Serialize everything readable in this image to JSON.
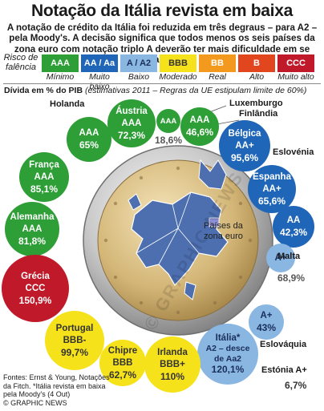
{
  "header": {
    "title": "Notação da Itália revista em baixa",
    "intro": "A notação de crédito da Itália foi reduzida em três degraus – para A2 – pela Moody's. A decisão significa que todos menos os seis países da zona euro com notação triplo A deverão ter mais dificuldade em se financiar"
  },
  "legend": {
    "label": "Risco de falência",
    "items": [
      {
        "rating": "AAA",
        "desc": "Mínimo",
        "color": "#2e9e36",
        "text": "#ffffff"
      },
      {
        "rating": "AA / Aa",
        "desc": "Muito baixo",
        "color": "#1f66b8",
        "text": "#ffffff"
      },
      {
        "rating": "A / A2",
        "desc": "Baixo",
        "color": "#8ab6e2",
        "text": "#1a2f5a"
      },
      {
        "rating": "BBB",
        "desc": "Moderado",
        "color": "#f6e21a",
        "text": "#333333"
      },
      {
        "rating": "BB",
        "desc": "Real",
        "color": "#f39a1e",
        "text": "#ffffff"
      },
      {
        "rating": "B",
        "desc": "Alto",
        "color": "#e2461e",
        "text": "#ffffff"
      },
      {
        "rating": "CCC",
        "desc": "Muito alto",
        "color": "#c01a2a",
        "text": "#ffffff"
      }
    ]
  },
  "debt": {
    "title": "Dívida em % do PIB",
    "note": "(estimativas 2011 – Regras da UE estipulam limite de 60%)"
  },
  "countries": {
    "holanda": {
      "name": "Holanda",
      "rating": "AAA",
      "pct": "65%"
    },
    "austria": {
      "name": "Áustria",
      "rating": "AAA",
      "pct": "72,3%"
    },
    "luxemburgo": {
      "name": "Luxemburgo",
      "rating": "AAA",
      "pct": "18,6%"
    },
    "finlandia": {
      "name": "Finlândia",
      "rating": "AAA",
      "pct": "46,6%"
    },
    "belgica": {
      "name": "Bélgica",
      "rating": "AA+",
      "pct": "95,6%"
    },
    "eslovenia": {
      "name": "Eslovénia",
      "rating": "AA",
      "pct": "42,3%"
    },
    "espanha": {
      "name": "Espanha",
      "rating": "AA+",
      "pct": "65,6%"
    },
    "franca": {
      "name": "França",
      "rating": "AAA",
      "pct": "85,1%"
    },
    "alemanha": {
      "name": "Alemanha",
      "rating": "AAA",
      "pct": "81,8%"
    },
    "malta": {
      "name": "Malta",
      "rating": "A+",
      "pct": "68,9%"
    },
    "grecia": {
      "name": "Grécia",
      "rating": "CCC",
      "pct": "150,9%"
    },
    "eslovaquia": {
      "name": "Eslováquia",
      "rating": "A+",
      "pct": "43%"
    },
    "portugal": {
      "name": "Portugal",
      "rating": "BBB-",
      "pct": "99,7%"
    },
    "italia": {
      "name": "Itália*",
      "rating": "A2 – desce de Aa2",
      "pct": "120,1%"
    },
    "chipre": {
      "name": "Chipre",
      "rating": "BBB",
      "pct": "62,7%"
    },
    "irlanda": {
      "name": "Irlanda",
      "rating": "BBB+",
      "pct": "110%"
    },
    "estonia": {
      "name": "Estónia",
      "rating": "A+",
      "pct": "6,7%"
    }
  },
  "coin": {
    "label_line1": "Países da",
    "label_line2": "zona euro"
  },
  "sources": "Fontes: Ernst & Young, Notações da Fitch. *Itália revista em baixa pela Moody's (4 Out)",
  "credit": "© GRAPHIC NEWS",
  "watermark": "© GRAPHIC NEWS"
}
